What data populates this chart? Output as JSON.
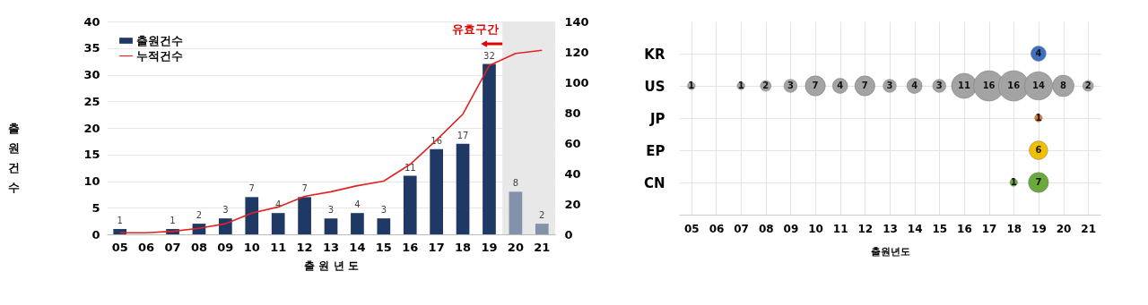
{
  "chart_data": [
    {
      "type": "bar",
      "categories": [
        "05",
        "06",
        "07",
        "08",
        "09",
        "10",
        "11",
        "12",
        "13",
        "14",
        "15",
        "16",
        "17",
        "18",
        "19",
        "20",
        "21"
      ],
      "xlabel": "출 원 년 도",
      "ylabel": "출원건수",
      "series": [
        {
          "name": "출원건수",
          "color": "#1f3864",
          "colors": [
            "#1f3864",
            "#1f3864",
            "#1f3864",
            "#1f3864",
            "#1f3864",
            "#1f3864",
            "#1f3864",
            "#1f3864",
            "#1f3864",
            "#1f3864",
            "#1f3864",
            "#1f3864",
            "#1f3864",
            "#1f3864",
            "#1f3864",
            "#8391ab",
            "#8391ab"
          ],
          "values": [
            1,
            null,
            1,
            2,
            3,
            7,
            4,
            7,
            3,
            4,
            3,
            11,
            16,
            17,
            32,
            8,
            2
          ],
          "value_labels": [
            "1",
            null,
            "1",
            "2",
            "3",
            "7",
            "4",
            "7",
            "3",
            "4",
            "3",
            "11",
            "16",
            "17",
            "32",
            "8",
            "2"
          ]
        },
        {
          "name": "누적건수",
          "type": "line",
          "axis": "y2",
          "color": "#e02424",
          "values": [
            1,
            1,
            2,
            4,
            7,
            14,
            18,
            25,
            28,
            32,
            35,
            46,
            62,
            79,
            111,
            119,
            121
          ]
        }
      ],
      "ylim": [
        0,
        40
      ],
      "yticks": [
        0,
        5,
        10,
        15,
        20,
        25,
        30,
        35,
        40
      ],
      "y2lim": [
        0,
        140
      ],
      "y2ticks": [
        0,
        20,
        40,
        60,
        80,
        100,
        120,
        140
      ],
      "grid": "y",
      "legend": "top left",
      "bands": [
        {
          "axis": "x",
          "from": "20",
          "to": "21",
          "color": "#e8e8e8"
        }
      ],
      "annotations": [
        "유효구간"
      ]
    },
    {
      "type": "heatmap",
      "categories": [
        "05",
        "06",
        "07",
        "08",
        "09",
        "10",
        "11",
        "12",
        "13",
        "14",
        "15",
        "16",
        "17",
        "18",
        "19",
        "20",
        "21"
      ],
      "y_categories": [
        "KR",
        "US",
        "JP",
        "EP",
        "CN"
      ],
      "xlabel": "출원년도",
      "grid": true,
      "data_labels": true,
      "colors": [
        "#3d6fc2",
        "#a3a3a3",
        "#e07a30",
        "#f0c000",
        "#6aaa3a"
      ],
      "cells": [
        [
          null,
          null,
          null,
          null,
          null,
          null,
          null,
          null,
          null,
          null,
          null,
          null,
          null,
          null,
          4,
          null,
          null
        ],
        [
          1,
          null,
          1,
          2,
          3,
          7,
          4,
          7,
          3,
          4,
          3,
          11,
          16,
          16,
          14,
          8,
          2
        ],
        [
          null,
          null,
          null,
          null,
          null,
          null,
          null,
          null,
          null,
          null,
          null,
          null,
          null,
          null,
          1,
          null,
          null
        ],
        [
          null,
          null,
          null,
          null,
          null,
          null,
          null,
          null,
          null,
          null,
          null,
          null,
          null,
          null,
          6,
          null,
          null
        ],
        [
          null,
          null,
          null,
          null,
          null,
          null,
          null,
          null,
          null,
          null,
          null,
          null,
          null,
          1,
          7,
          null,
          null
        ]
      ]
    }
  ]
}
